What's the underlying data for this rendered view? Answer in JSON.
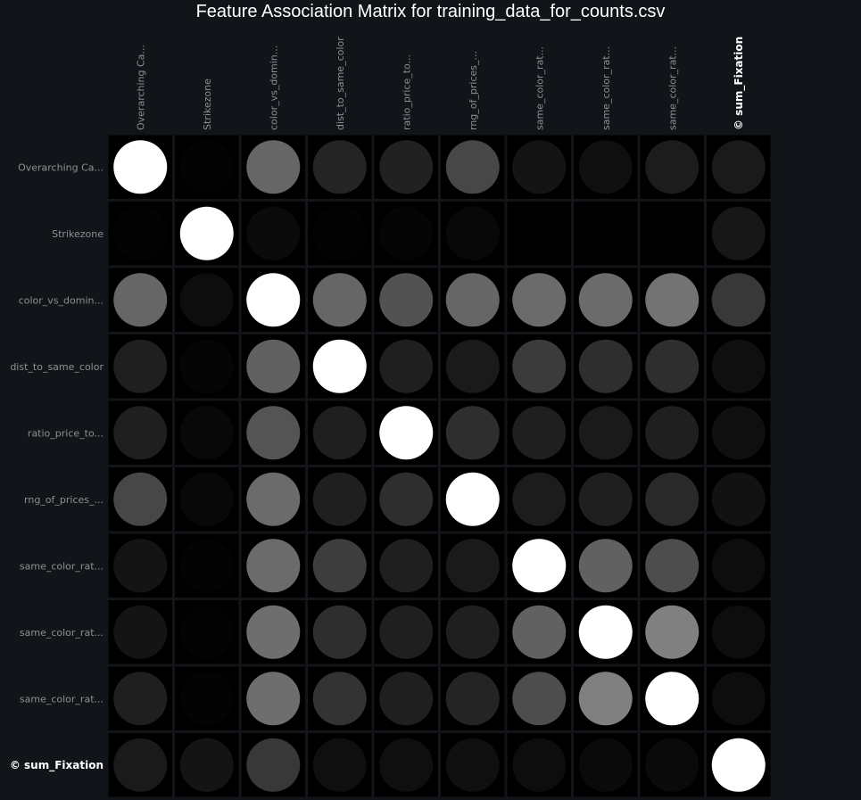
{
  "title": "Feature Association Matrix for training_data_for_counts.csv",
  "chart_data": {
    "type": "heatmap",
    "title": "Feature Association Matrix for training_data_for_counts.csv",
    "columns": [
      "Overarching Ca...",
      "Strikezone",
      "color_vs_domin...",
      "dist_to_same_color",
      "ratio_price_to...",
      "rng_of_prices_...",
      "same_color_rat...",
      "same_color_rat...",
      "same_color_rat...",
      "© sum_Fixation"
    ],
    "rows": [
      "Overarching Ca...",
      "Strikezone",
      "color_vs_domin...",
      "dist_to_same_color",
      "ratio_price_to...",
      "rng_of_prices_...",
      "same_color_rat...",
      "same_color_rat...",
      "same_color_rat...",
      "© sum_Fixation"
    ],
    "target_index": 9,
    "values": [
      [
        1.0,
        0.01,
        0.4,
        0.14,
        0.13,
        0.28,
        0.08,
        0.06,
        0.11,
        0.1
      ],
      [
        0.01,
        1.0,
        0.04,
        0.01,
        0.02,
        0.03,
        0.0,
        0.0,
        0.0,
        0.09
      ],
      [
        0.4,
        0.05,
        1.0,
        0.4,
        0.32,
        0.4,
        0.42,
        0.42,
        0.45,
        0.22
      ],
      [
        0.12,
        0.02,
        0.38,
        1.0,
        0.12,
        0.1,
        0.23,
        0.18,
        0.18,
        0.06
      ],
      [
        0.12,
        0.03,
        0.33,
        0.12,
        1.0,
        0.18,
        0.12,
        0.1,
        0.12,
        0.06
      ],
      [
        0.28,
        0.03,
        0.42,
        0.12,
        0.18,
        1.0,
        0.11,
        0.12,
        0.16,
        0.07
      ],
      [
        0.08,
        0.01,
        0.42,
        0.24,
        0.12,
        0.1,
        1.0,
        0.38,
        0.3,
        0.05
      ],
      [
        0.08,
        0.01,
        0.43,
        0.18,
        0.12,
        0.12,
        0.38,
        1.0,
        0.5,
        0.05
      ],
      [
        0.12,
        0.01,
        0.43,
        0.2,
        0.12,
        0.14,
        0.3,
        0.5,
        1.0,
        0.05
      ],
      [
        0.1,
        0.08,
        0.22,
        0.06,
        0.06,
        0.06,
        0.05,
        0.04,
        0.04,
        1.0
      ]
    ]
  },
  "colors": {
    "background": "#111418",
    "cell_background": "#000000",
    "marker_max": "#ffffff",
    "label": "#8c8f93",
    "target_label": "#ffffff"
  }
}
